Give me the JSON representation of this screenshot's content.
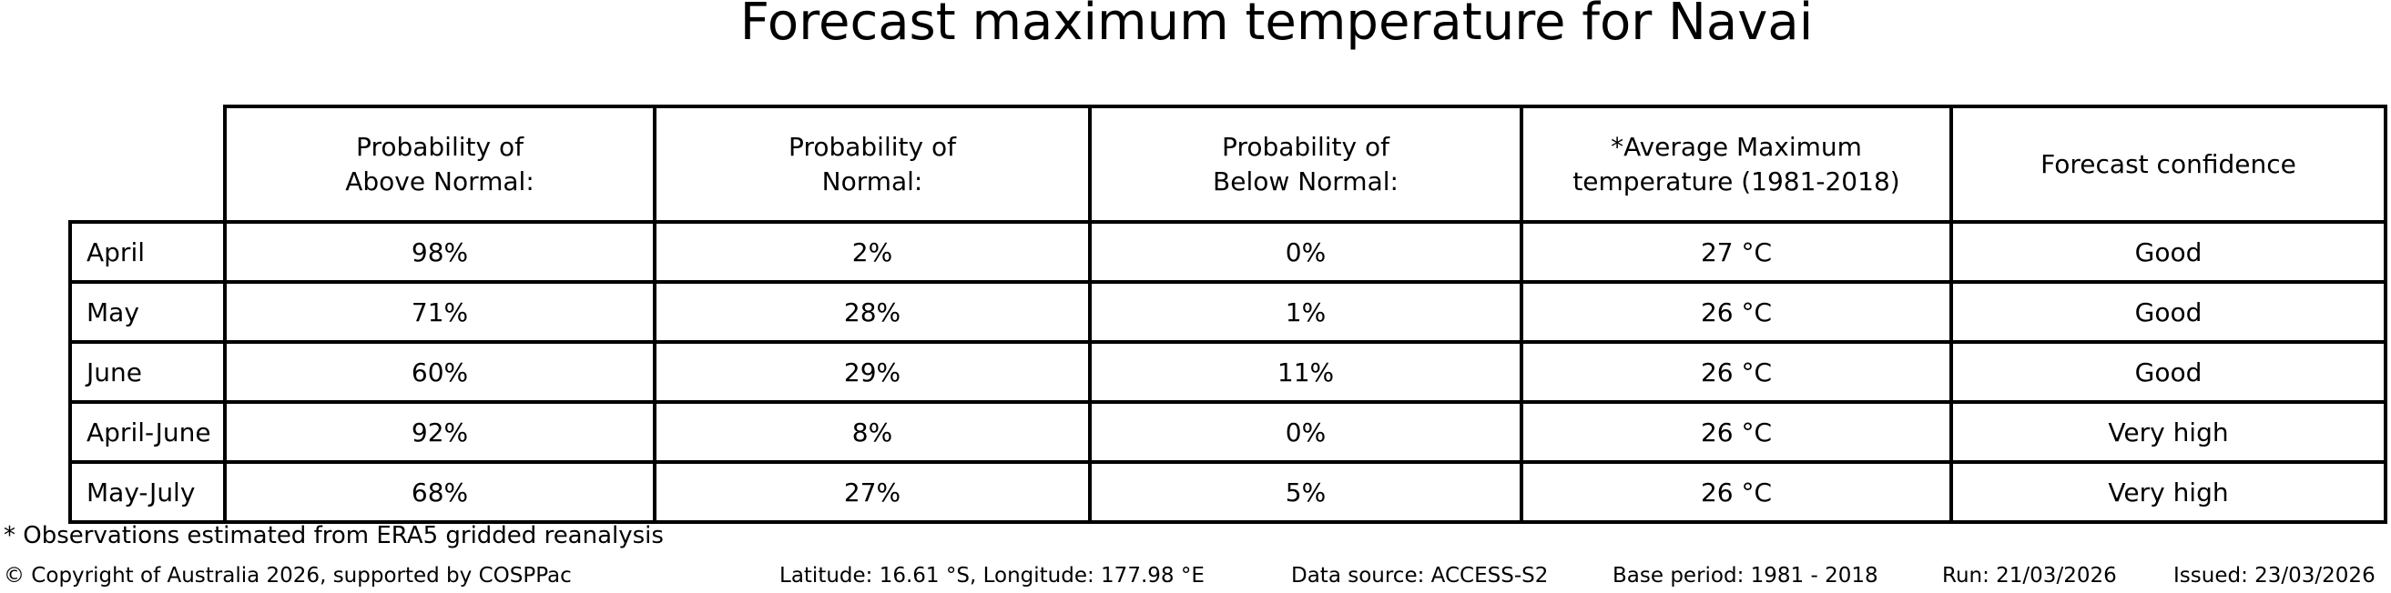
{
  "title": "Forecast maximum temperature for Navai",
  "table": {
    "headers": [
      "Probability of\nAbove Normal:",
      "Probability of\nNormal:",
      "Probability of\nBelow Normal:",
      "*Average Maximum\ntemperature (1981-2018)",
      "Forecast confidence"
    ],
    "rows": [
      {
        "label": "April",
        "above": "98%",
        "normal": "2%",
        "below": "0%",
        "avg_max": "27 °C",
        "confidence": "Good"
      },
      {
        "label": "May",
        "above": "71%",
        "normal": "28%",
        "below": "1%",
        "avg_max": "26 °C",
        "confidence": "Good"
      },
      {
        "label": "June",
        "above": "60%",
        "normal": "29%",
        "below": "11%",
        "avg_max": "26 °C",
        "confidence": "Good"
      },
      {
        "label": "April-June",
        "above": "92%",
        "normal": "8%",
        "below": "0%",
        "avg_max": "26 °C",
        "confidence": "Very high"
      },
      {
        "label": "May-July",
        "above": "68%",
        "normal": "27%",
        "below": "5%",
        "avg_max": "26 °C",
        "confidence": "Very high"
      }
    ]
  },
  "footnote": "* Observations estimated from ERA5 gridded reanalysis",
  "footer": {
    "copyright": "© Copyright of Australia 2026, supported by COSPPac",
    "location": "Latitude: 16.61 °S, Longitude: 177.98 °E",
    "data_source": "Data source: ACCESS-S2",
    "base_period": "Base period: 1981 - 2018",
    "run": "Run: 21/03/2026",
    "issued": "Issued: 23/03/2026"
  },
  "colors": {
    "text": "#000000",
    "background": "#ffffff",
    "table_border": "#000000"
  },
  "chart_data": {
    "type": "table",
    "title": "Forecast maximum temperature for Navai",
    "columns": [
      "",
      "Probability of Above Normal:",
      "Probability of Normal:",
      "Probability of Below Normal:",
      "*Average Maximum temperature (1981-2018)",
      "Forecast confidence"
    ],
    "rows": [
      [
        "April",
        "98%",
        "2%",
        "0%",
        "27 °C",
        "Good"
      ],
      [
        "May",
        "71%",
        "28%",
        "1%",
        "26 °C",
        "Good"
      ],
      [
        "June",
        "60%",
        "29%",
        "11%",
        "26 °C",
        "Good"
      ],
      [
        "April-June",
        "92%",
        "8%",
        "0%",
        "26 °C",
        "Very high"
      ],
      [
        "May-July",
        "68%",
        "27%",
        "5%",
        "26 °C",
        "Very high"
      ]
    ],
    "probabilities_above_normal_pct": [
      98,
      71,
      60,
      92,
      68
    ],
    "probabilities_normal_pct": [
      2,
      28,
      29,
      8,
      27
    ],
    "probabilities_below_normal_pct": [
      0,
      1,
      11,
      0,
      5
    ],
    "average_max_temperature_c": [
      27,
      26,
      26,
      26,
      26
    ],
    "forecast_confidence": [
      "Good",
      "Good",
      "Good",
      "Very high",
      "Very high"
    ]
  }
}
